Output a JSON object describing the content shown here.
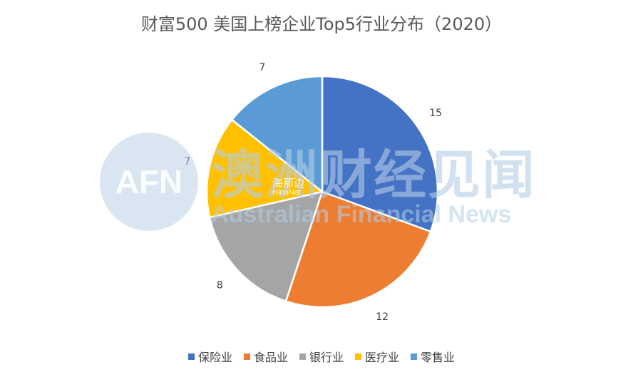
{
  "chart_data": {
    "type": "pie",
    "title": "财富500 美国上榜企业Top5行业分布（2020）",
    "categories": [
      "保险业",
      "食品业",
      "银行业",
      "医疗业",
      "零售业"
    ],
    "values": [
      15,
      12,
      8,
      7,
      7
    ],
    "colors": [
      "#4472C4",
      "#ED7D31",
      "#A5A5A5",
      "#FFC000",
      "#5B9BD5"
    ],
    "legend_position": "bottom"
  },
  "watermark": {
    "logo": "AFN",
    "name_cn": "澳洲财经见闻",
    "name_en": "Australian Financial News",
    "sub_cn": "海那边",
    "sub_en": "HinaNet"
  }
}
